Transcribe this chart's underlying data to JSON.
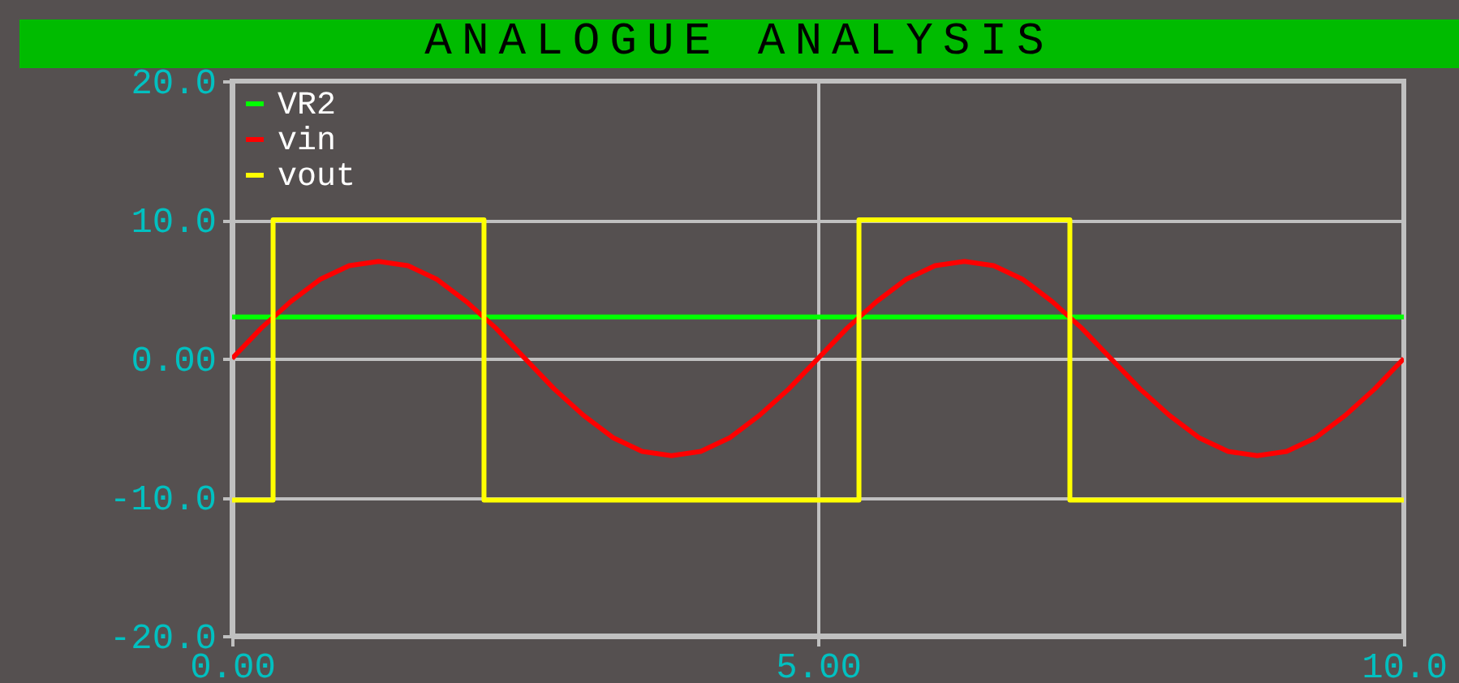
{
  "chart_data": {
    "type": "line",
    "title": "ANALOGUE ANALYSIS",
    "xlim": [
      0,
      10
    ],
    "xticks": [
      {
        "value": 0,
        "label": "0.00"
      },
      {
        "value": 5,
        "label": "5.00"
      },
      {
        "value": 10,
        "label": "10.0"
      }
    ],
    "ylim": [
      -20,
      20
    ],
    "yticks": [
      {
        "value": -20,
        "label": "-20.0"
      },
      {
        "value": -10,
        "label": "-10.0"
      },
      {
        "value": 0,
        "label": "0.00"
      },
      {
        "value": 10,
        "label": "10.0"
      },
      {
        "value": 20,
        "label": "20.0"
      }
    ],
    "grid": true,
    "legend": "top left",
    "series": [
      {
        "name": "VR2",
        "color": "#00ff00",
        "x": [
          0,
          10
        ],
        "values": [
          3.0,
          3.0
        ]
      },
      {
        "name": "vin",
        "color": "#ff0000",
        "x": [
          0,
          0.25,
          0.5,
          0.75,
          1,
          1.25,
          1.5,
          1.75,
          2,
          2.25,
          2.5,
          2.75,
          3,
          3.25,
          3.5,
          3.75,
          4,
          4.25,
          4.5,
          4.75,
          5,
          5.25,
          5.5,
          5.75,
          6,
          6.25,
          6.5,
          6.75,
          7,
          7.25,
          7.5,
          7.75,
          8,
          8.25,
          8.5,
          8.75,
          9,
          9.25,
          9.5,
          9.75,
          10
        ],
        "values": [
          0,
          2.2,
          4.1,
          5.7,
          6.7,
          7.0,
          6.7,
          5.7,
          4.1,
          2.2,
          0,
          -2.2,
          -4.1,
          -5.7,
          -6.7,
          -7.0,
          -6.7,
          -5.7,
          -4.1,
          -2.2,
          0,
          2.2,
          4.1,
          5.7,
          6.7,
          7.0,
          6.7,
          5.7,
          4.1,
          2.2,
          0,
          -2.2,
          -4.1,
          -5.7,
          -6.7,
          -7.0,
          -6.7,
          -5.7,
          -4.1,
          -2.2,
          0
        ]
      },
      {
        "name": "vout",
        "color": "#ffff00",
        "x": [
          0,
          0.35,
          0.35,
          2.15,
          2.15,
          5.35,
          5.35,
          7.15,
          7.15,
          10
        ],
        "values": [
          -10.2,
          -10.2,
          10,
          10,
          -10.2,
          -10.2,
          10,
          10,
          -10.2,
          -10.2
        ]
      }
    ]
  }
}
